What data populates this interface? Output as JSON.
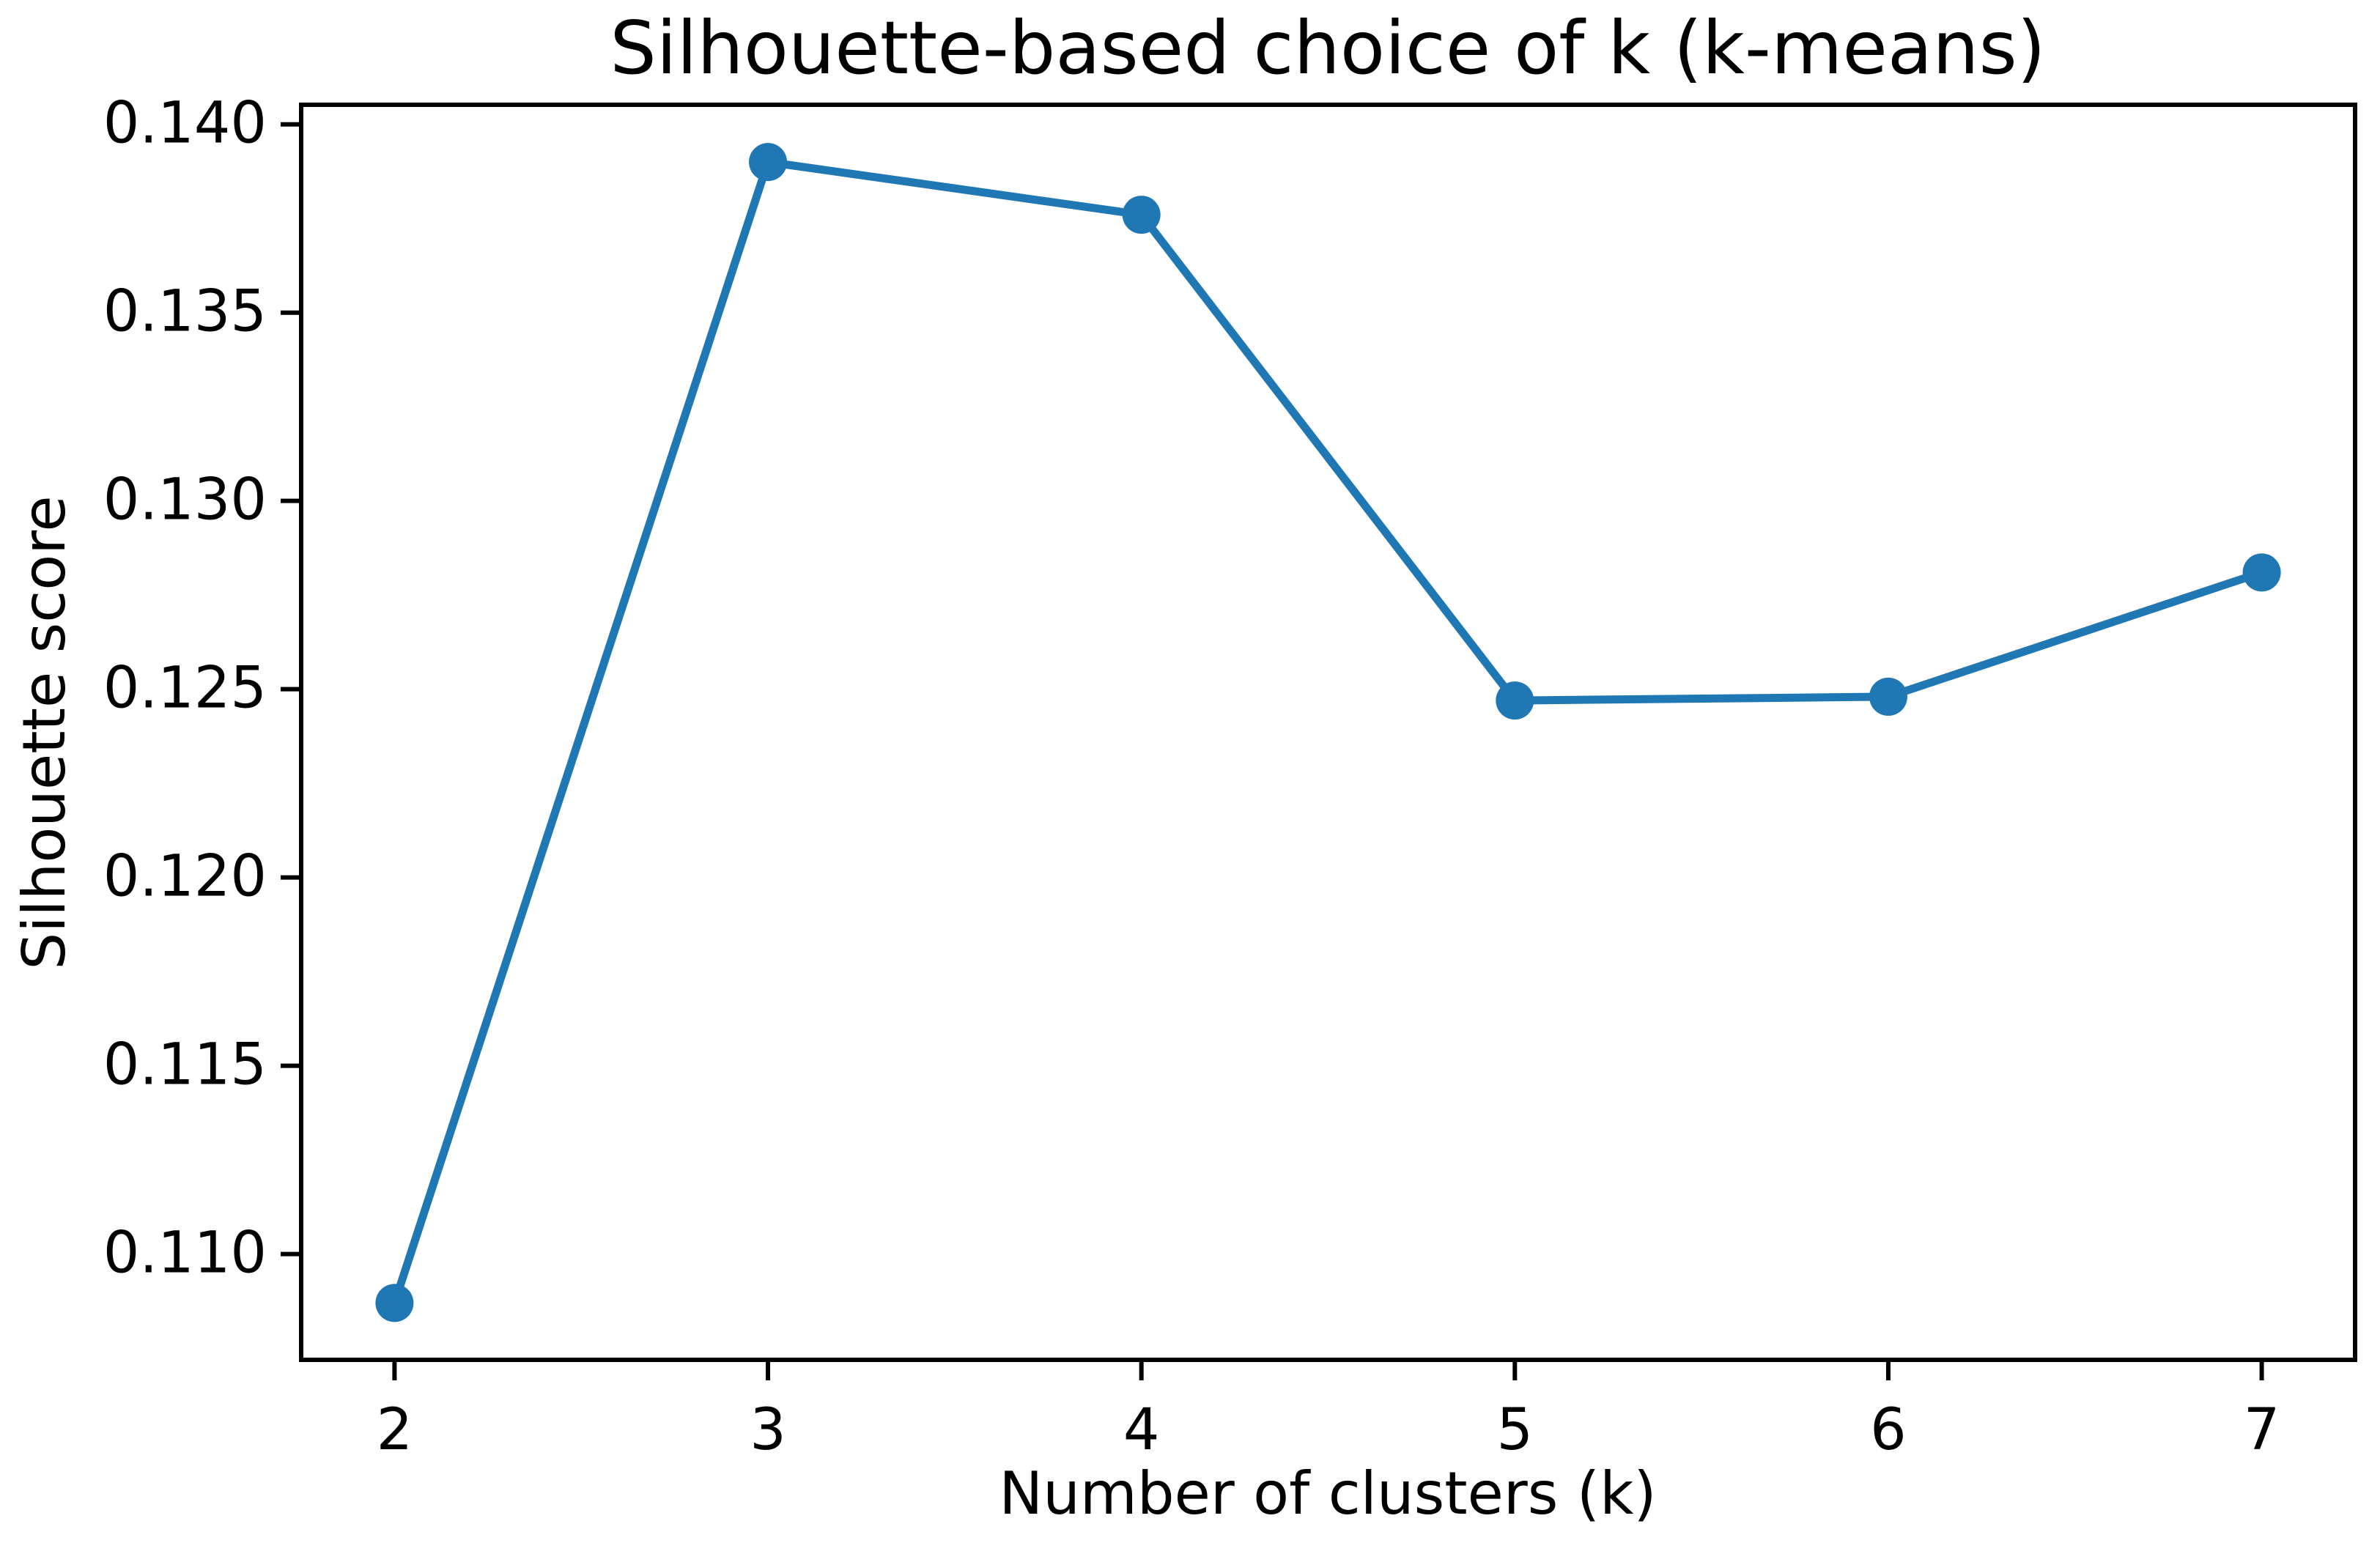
{
  "chart_data": {
    "type": "line",
    "title": "Silhouette-based choice of k (k-means)",
    "xlabel": "Number of clusters (k)",
    "ylabel": "Silhouette score",
    "x": [
      2,
      3,
      4,
      5,
      6,
      7
    ],
    "y": [
      0.1087,
      0.139,
      0.1376,
      0.1247,
      0.1248,
      0.1281
    ],
    "xlim": [
      1.75,
      7.25
    ],
    "ylim": [
      0.10719,
      0.14052
    ],
    "x_ticks": [
      2,
      3,
      4,
      5,
      6,
      7
    ],
    "x_tick_labels": [
      "2",
      "3",
      "4",
      "5",
      "6",
      "7"
    ],
    "y_ticks": [
      0.11,
      0.115,
      0.12,
      0.125,
      0.13,
      0.135,
      0.14
    ],
    "y_tick_labels": [
      "0.110",
      "0.115",
      "0.120",
      "0.125",
      "0.130",
      "0.135",
      "0.140"
    ],
    "grid": false,
    "legend": false,
    "line_color": "#1f77b4",
    "marker": "circle",
    "marker_color": "#1f77b4",
    "background_color": "#ffffff",
    "text_color": "#000000",
    "spine_color": "#000000"
  }
}
